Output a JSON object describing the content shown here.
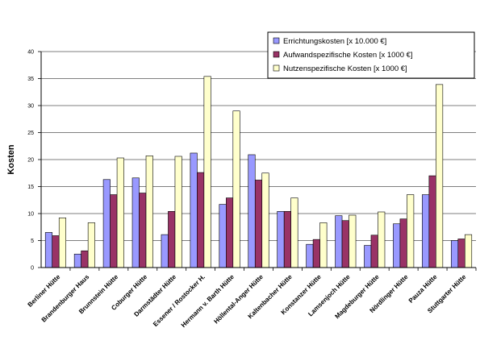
{
  "chart_data": {
    "type": "bar",
    "title": "",
    "xlabel": "",
    "ylabel": "Kosten",
    "ylim": [
      0,
      40
    ],
    "y_ticks": [
      "0",
      "5",
      "10",
      "15",
      "20",
      "25",
      "30",
      "35",
      "40"
    ],
    "grid": "horizontal",
    "legend_position": "top-right",
    "categories": [
      "Berliner Hütte",
      "Brandenburger Haus",
      "Brunnstein Hütte",
      "Coburger Hütte",
      "Darmstädter Hütte",
      "Essener / Rostocker H.",
      "Hermann v. Barth Hütte",
      "Höllental-Anger Hütte",
      "Kaltenbacher Hütte",
      "Konstanzer Hütte",
      "Lamsenjoch Hütte",
      "Magdeburger Hütte",
      "Nördlinger Hütte",
      "Pauza Hütte",
      "Stuttgarter Hütte"
    ],
    "series": [
      {
        "name": "Errichtungskosten  [x 10.000 €]",
        "color": "#9999ff",
        "values": [
          6.5,
          2.5,
          16.3,
          16.6,
          6.1,
          21.2,
          11.7,
          20.9,
          10.4,
          4.3,
          9.6,
          4.1,
          8.1,
          13.5,
          5.0
        ]
      },
      {
        "name": "Aufwandspezifische Kosten  [x 1000 €]",
        "color": "#993366",
        "values": [
          5.9,
          3.1,
          13.5,
          13.8,
          10.4,
          17.6,
          12.9,
          16.2,
          10.4,
          5.2,
          8.7,
          6.0,
          9.0,
          17.0,
          5.3
        ]
      },
      {
        "name": "Nutzenspezifische Kosten  [x 1000 €]",
        "color": "#ffffcc",
        "values": [
          9.2,
          8.3,
          20.3,
          20.7,
          20.6,
          35.4,
          29.0,
          17.5,
          12.9,
          8.3,
          9.7,
          10.3,
          13.5,
          33.9,
          6.1
        ]
      }
    ]
  }
}
